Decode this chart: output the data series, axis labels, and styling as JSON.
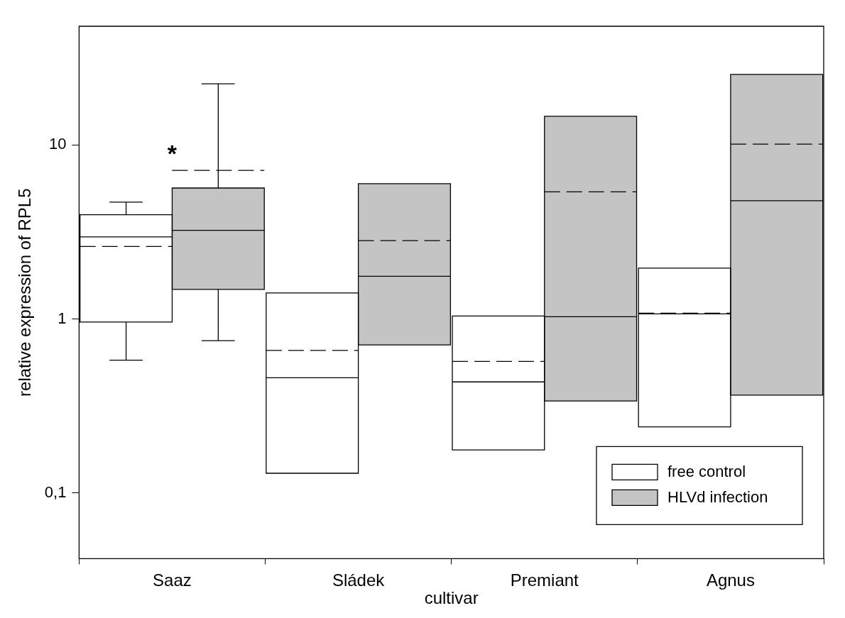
{
  "chart_data": {
    "type": "box",
    "xlabel": "cultivar",
    "ylabel": "relative expression of RPL5",
    "categories": [
      "Saaz",
      "Sládek",
      "Premiant",
      "Agnus"
    ],
    "series": [
      {
        "name": "free control",
        "color": "#ffffff",
        "boxes": [
          {
            "low": 0.58,
            "q1": 0.96,
            "median": 2.96,
            "q3": 3.97,
            "high": 4.69,
            "mean": 2.61
          },
          {
            "low": 0.13,
            "q1": 0.13,
            "median": 0.46,
            "q3": 1.41,
            "high": 1.41,
            "mean": 0.66
          },
          {
            "low": 0.177,
            "q1": 0.177,
            "median": 0.435,
            "q3": 1.04,
            "high": 1.04,
            "mean": 0.57
          },
          {
            "low": 0.24,
            "q1": 0.24,
            "median": 1.07,
            "q3": 1.96,
            "high": 1.96,
            "mean": 1.08
          }
        ]
      },
      {
        "name": "HLVd infection",
        "color": "#c4c4c4",
        "boxes": [
          {
            "low": 0.75,
            "q1": 1.48,
            "median": 3.23,
            "q3": 5.65,
            "high": 22.4,
            "mean": 7.13
          },
          {
            "low": 0.71,
            "q1": 0.71,
            "median": 1.76,
            "q3": 5.98,
            "high": 5.98,
            "mean": 2.82
          },
          {
            "low": 0.338,
            "q1": 0.338,
            "median": 1.03,
            "q3": 14.6,
            "high": 14.6,
            "mean": 5.37
          },
          {
            "low": 0.365,
            "q1": 0.365,
            "median": 4.78,
            "q3": 25.4,
            "high": 25.4,
            "mean": 10.1
          }
        ]
      }
    ],
    "ylim": [
      0.042,
      48
    ],
    "yticks": [
      {
        "value": 0.1,
        "label": "0,1"
      },
      1,
      10
    ],
    "log": "y",
    "grid": false,
    "legend": "bottom right",
    "annotations": [
      "*"
    ]
  }
}
